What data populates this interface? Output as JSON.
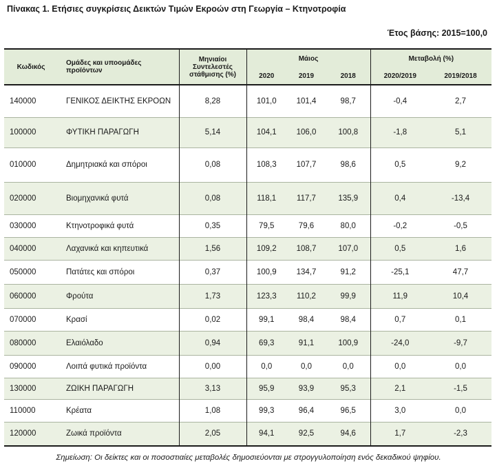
{
  "title": "Πίνακας 1. Ετήσιες συγκρίσεις Δεικτών Τιμών Εκροών στη Γεωργία – Κτηνοτροφία",
  "base_year": "Έτος βάσης: 2015=100,0",
  "headers": {
    "code": "Κωδικός",
    "groups": "Ομάδες και υποομάδες προϊόντων",
    "weights": "Μηνιαίοι Συντελεστές στάθμισης (%)",
    "month": "Μάιος",
    "change": "Μεταβολή (%)",
    "y2020": "2020",
    "y2019": "2019",
    "y2018": "2018",
    "ch1": "2020/2019",
    "ch2": "2019/2018"
  },
  "rows": [
    {
      "code": "140000",
      "name": "ΓΕΝΙΚΟΣ ΔΕΙΚΤΗΣ ΕΚΡΟΩΝ",
      "weight": "8,28",
      "y2020": "101,0",
      "y2019": "101,4",
      "y2018": "98,7",
      "ch1": "-0,4",
      "ch2": "2,7"
    },
    {
      "code": "100000",
      "name": "ΦΥΤΙΚΗ ΠΑΡΑΓΩΓΗ",
      "weight": "5,14",
      "y2020": "104,1",
      "y2019": "106,0",
      "y2018": "100,8",
      "ch1": "-1,8",
      "ch2": "5,1"
    },
    {
      "code": "010000",
      "name": "Δημητριακά και σπόροι",
      "weight": "0,08",
      "y2020": "108,3",
      "y2019": "107,7",
      "y2018": "98,6",
      "ch1": "0,5",
      "ch2": "9,2"
    },
    {
      "code": "020000",
      "name": "Βιομηχανικά φυτά",
      "weight": "0,08",
      "y2020": "118,1",
      "y2019": "117,7",
      "y2018": "135,9",
      "ch1": "0,4",
      "ch2": "-13,4"
    },
    {
      "code": "030000",
      "name": "Κτηνοτροφικά φυτά",
      "weight": "0,35",
      "y2020": "79,5",
      "y2019": "79,6",
      "y2018": "80,0",
      "ch1": "-0,2",
      "ch2": "-0,5"
    },
    {
      "code": "040000",
      "name": "Λαχανικά και κηπευτικά",
      "weight": "1,56",
      "y2020": "109,2",
      "y2019": "108,7",
      "y2018": "107,0",
      "ch1": "0,5",
      "ch2": "1,6"
    },
    {
      "code": "050000",
      "name": "Πατάτες και σπόροι",
      "weight": "0,37",
      "y2020": "100,9",
      "y2019": "134,7",
      "y2018": "91,2",
      "ch1": "-25,1",
      "ch2": "47,7"
    },
    {
      "code": "060000",
      "name": "Φρούτα",
      "weight": "1,73",
      "y2020": "123,3",
      "y2019": "110,2",
      "y2018": "99,9",
      "ch1": "11,9",
      "ch2": "10,4"
    },
    {
      "code": "070000",
      "name": "Κρασί",
      "weight": "0,02",
      "y2020": "99,1",
      "y2019": "98,4",
      "y2018": "98,4",
      "ch1": "0,7",
      "ch2": "0,1"
    },
    {
      "code": "080000",
      "name": "Ελαιόλαδο",
      "weight": "0,94",
      "y2020": "69,3",
      "y2019": "91,1",
      "y2018": "100,9",
      "ch1": "-24,0",
      "ch2": "-9,7"
    },
    {
      "code": "090000",
      "name": "Λοιπά φυτικά προϊόντα",
      "weight": "0,00",
      "y2020": "0,0",
      "y2019": "0,0",
      "y2018": "0,0",
      "ch1": "0,0",
      "ch2": "0,0"
    },
    {
      "code": "130000",
      "name": "ΖΩΙΚΗ ΠΑΡΑΓΩΓΗ",
      "weight": "3,13",
      "y2020": "95,9",
      "y2019": "93,9",
      "y2018": "95,3",
      "ch1": "2,1",
      "ch2": "-1,5"
    },
    {
      "code": "110000",
      "name": "Κρέατα",
      "weight": "1,08",
      "y2020": "99,3",
      "y2019": "96,4",
      "y2018": "96,5",
      "ch1": "3,0",
      "ch2": "0,0"
    },
    {
      "code": "120000",
      "name": "Ζωικά προϊόντα",
      "weight": "2,05",
      "y2020": "94,1",
      "y2019": "92,5",
      "y2018": "94,6",
      "ch1": "1,7",
      "ch2": "-2,3"
    }
  ],
  "note": "Σημείωση: Οι δείκτες και οι ποσοστιαίες μεταβολές δημοσιεύονται με στρογγυλοποίηση ενός δεκαδικού ψηφίου."
}
